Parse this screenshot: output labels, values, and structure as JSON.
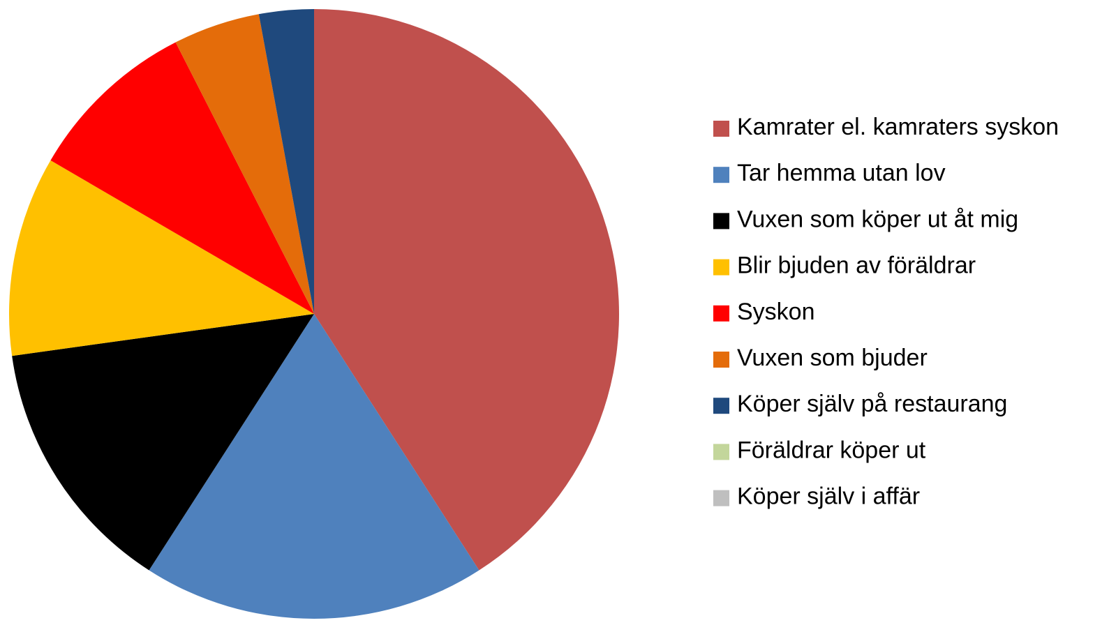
{
  "chart_data": {
    "type": "pie",
    "categories": [
      "Kamrater el. kamraters syskon",
      "Tar hemma utan lov",
      "Vuxen som köper ut åt mig",
      "Blir bjuden av föräldrar",
      "Syskon",
      "Vuxen som bjuder",
      "Köper själv på restaurang",
      "Föräldrar köper ut",
      "Köper själv i affär"
    ],
    "values": [
      40.9,
      18.2,
      13.7,
      10.6,
      9.1,
      4.6,
      2.9,
      0,
      0
    ],
    "colors": [
      "#c0504d",
      "#4f81bd",
      "#000000",
      "#ffc000",
      "#ff0000",
      "#e46c0a",
      "#1f497d",
      "#c3d69b",
      "#bfbfbf"
    ],
    "legend": "right"
  }
}
